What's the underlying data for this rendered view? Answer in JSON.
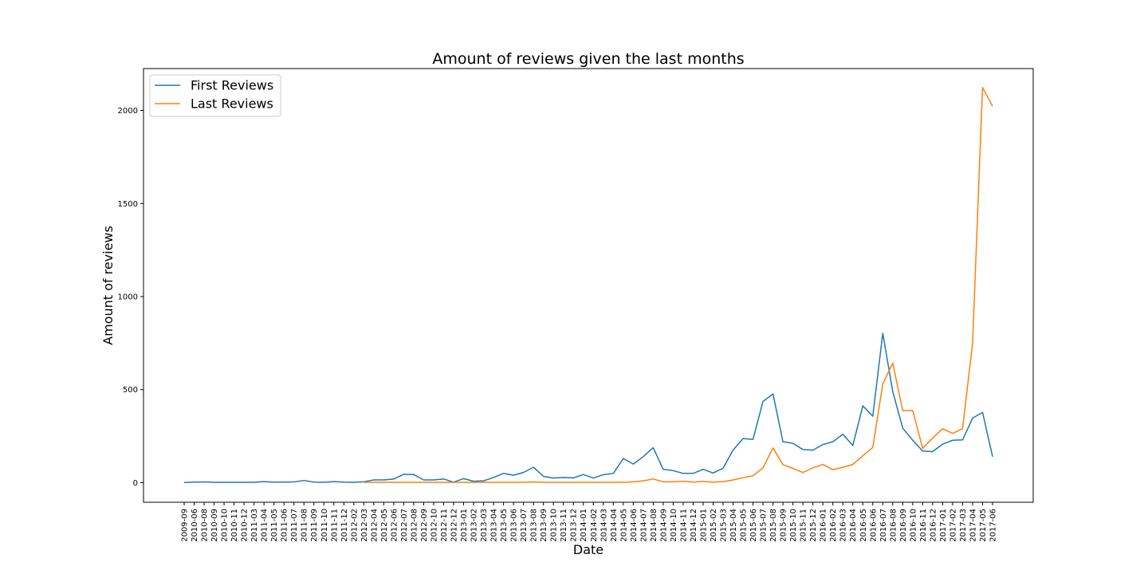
{
  "chart_data": {
    "type": "line",
    "title": "Amount of reviews given the last months",
    "xlabel": "Date",
    "ylabel": "Amount of reviews",
    "ylim": [
      -105,
      2225
    ],
    "yticks": [
      0,
      500,
      1000,
      1500,
      2000
    ],
    "grid": false,
    "legend_position": "top-left",
    "x": [
      "2009-09",
      "2010-06",
      "2010-08",
      "2010-09",
      "2010-10",
      "2010-11",
      "2010-12",
      "2011-03",
      "2011-04",
      "2011-05",
      "2011-06",
      "2011-07",
      "2011-08",
      "2011-09",
      "2011-10",
      "2011-11",
      "2011-12",
      "2012-02",
      "2012-03",
      "2012-04",
      "2012-05",
      "2012-06",
      "2012-07",
      "2012-08",
      "2012-09",
      "2012-10",
      "2012-11",
      "2012-12",
      "2013-01",
      "2013-02",
      "2013-03",
      "2013-04",
      "2013-05",
      "2013-06",
      "2013-07",
      "2013-08",
      "2013-09",
      "2013-10",
      "2013-11",
      "2013-12",
      "2014-01",
      "2014-02",
      "2014-03",
      "2014-04",
      "2014-05",
      "2014-06",
      "2014-07",
      "2014-08",
      "2014-09",
      "2014-10",
      "2014-11",
      "2014-12",
      "2015-01",
      "2015-02",
      "2015-03",
      "2015-04",
      "2015-05",
      "2015-06",
      "2015-07",
      "2015-08",
      "2015-09",
      "2015-10",
      "2015-11",
      "2015-12",
      "2016-01",
      "2016-02",
      "2016-03",
      "2016-04",
      "2016-05",
      "2016-06",
      "2016-07",
      "2016-08",
      "2016-09",
      "2016-10",
      "2016-11",
      "2016-12",
      "2017-01",
      "2017-02",
      "2017-03",
      "2017-04",
      "2017-05",
      "2017-06"
    ],
    "series": [
      {
        "name": "First Reviews",
        "color": "#1f77b4",
        "values": [
          1,
          3,
          4,
          2,
          2,
          2,
          2,
          2,
          6,
          3,
          3,
          4,
          12,
          3,
          2,
          6,
          3,
          2,
          5,
          15,
          15,
          20,
          45,
          44,
          15,
          15,
          20,
          3,
          22,
          8,
          10,
          28,
          50,
          40,
          55,
          83,
          34,
          25,
          28,
          26,
          44,
          25,
          43,
          50,
          130,
          100,
          140,
          188,
          72,
          65,
          50,
          50,
          72,
          52,
          78,
          175,
          237,
          233,
          437,
          477,
          220,
          212,
          178,
          175,
          205,
          220,
          260,
          200,
          413,
          357,
          803,
          490,
          293,
          228,
          170,
          167,
          207,
          228,
          230,
          347,
          378,
          140
        ]
      },
      {
        "name": "Last Reviews",
        "color": "#ff7f0e",
        "values": [
          null,
          null,
          null,
          null,
          null,
          null,
          null,
          null,
          null,
          null,
          null,
          null,
          null,
          null,
          null,
          null,
          null,
          null,
          2,
          2,
          2,
          2,
          2,
          2,
          2,
          2,
          2,
          2,
          2,
          2,
          2,
          2,
          2,
          2,
          2,
          4,
          2,
          2,
          2,
          2,
          2,
          2,
          2,
          2,
          2,
          5,
          10,
          20,
          5,
          5,
          8,
          3,
          7,
          3,
          6,
          15,
          27,
          37,
          80,
          187,
          97,
          77,
          55,
          80,
          98,
          70,
          83,
          98,
          145,
          190,
          530,
          643,
          387,
          388,
          185,
          240,
          290,
          265,
          290,
          750,
          2123,
          2023
        ]
      }
    ]
  }
}
